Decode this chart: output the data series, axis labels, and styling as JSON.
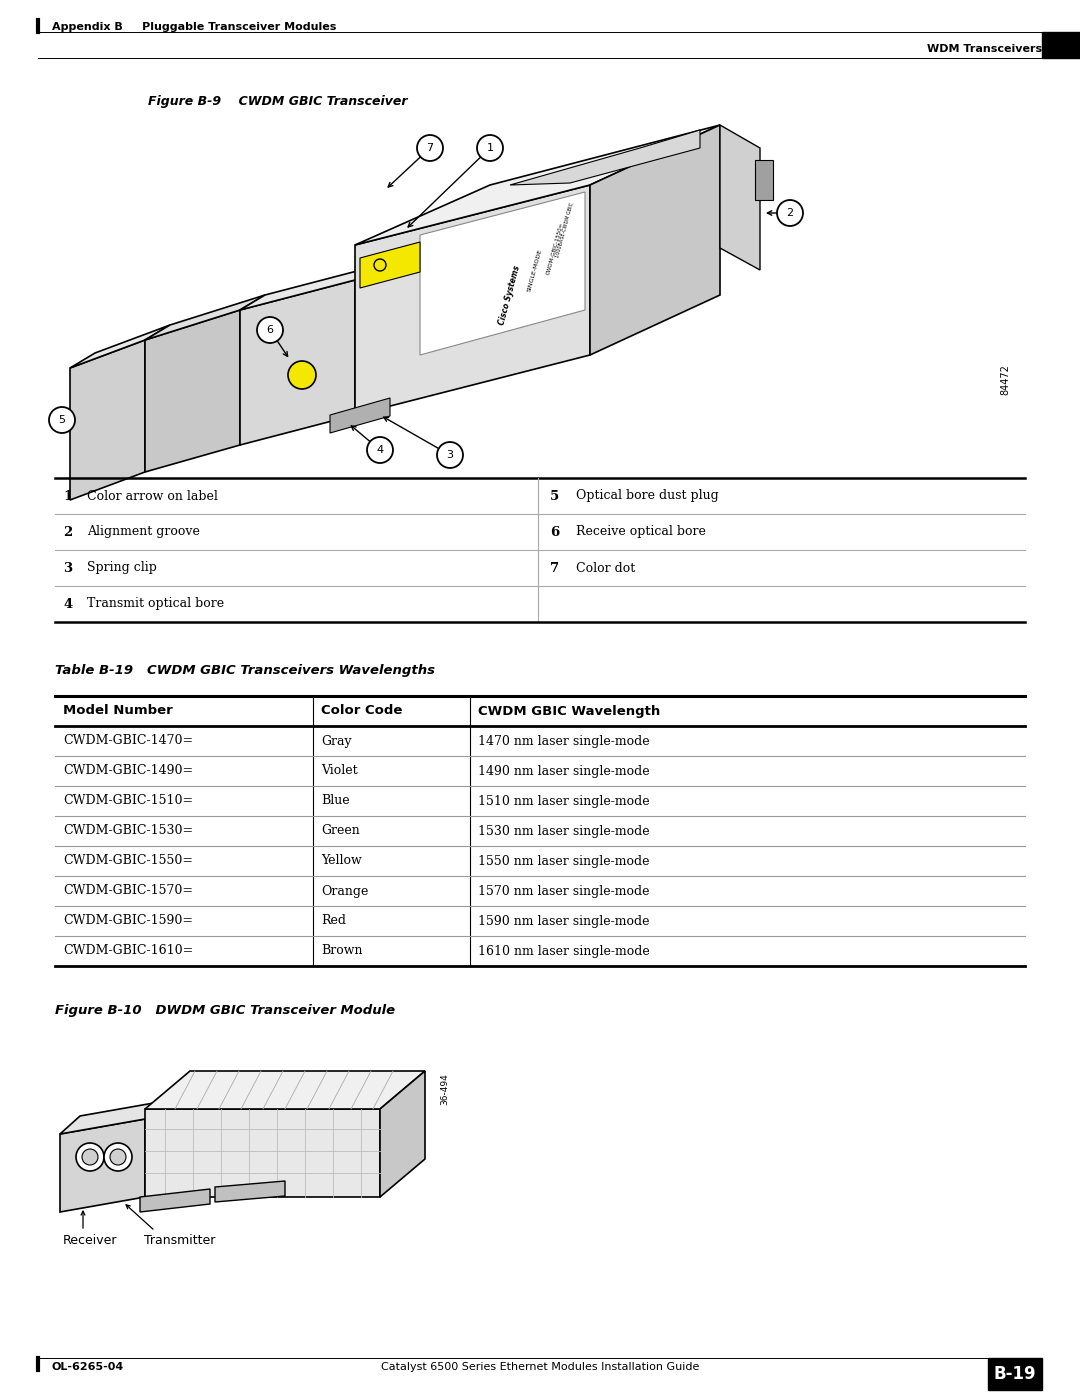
{
  "page_width": 10.8,
  "page_height": 13.97,
  "bg_color": "#ffffff",
  "header_text_left": "Appendix B     Pluggable Transceiver Modules",
  "header_text_right": "WDM Transceivers",
  "footer_text_left": "OL-6265-04",
  "footer_text_right": "B-19",
  "footer_center": "Catalyst 6500 Series Ethernet Modules Installation Guide",
  "figure_b9_title": "Figure B-9    CWDM GBIC Transceiver",
  "callout_table": {
    "rows": [
      [
        "1",
        "Color arrow on label",
        "5",
        "Optical bore dust plug"
      ],
      [
        "2",
        "Alignment groove",
        "6",
        "Receive optical bore"
      ],
      [
        "3",
        "Spring clip",
        "7",
        "Color dot"
      ],
      [
        "4",
        "Transmit optical bore",
        "",
        ""
      ]
    ]
  },
  "table_b19_title": "Table B-19   CWDM GBIC Transceivers Wavelengths",
  "table_b19_headers": [
    "Model Number",
    "Color Code",
    "CWDM GBIC Wavelength"
  ],
  "table_b19_rows": [
    [
      "CWDM-GBIC-1470=",
      "Gray",
      "1470 nm laser single-mode"
    ],
    [
      "CWDM-GBIC-1490=",
      "Violet",
      "1490 nm laser single-mode"
    ],
    [
      "CWDM-GBIC-1510=",
      "Blue",
      "1510 nm laser single-mode"
    ],
    [
      "CWDM-GBIC-1530=",
      "Green",
      "1530 nm laser single-mode"
    ],
    [
      "CWDM-GBIC-1550=",
      "Yellow",
      "1550 nm laser single-mode"
    ],
    [
      "CWDM-GBIC-1570=",
      "Orange",
      "1570 nm laser single-mode"
    ],
    [
      "CWDM-GBIC-1590=",
      "Red",
      "1590 nm laser single-mode"
    ],
    [
      "CWDM-GBIC-1610=",
      "Brown",
      "1610 nm laser single-mode"
    ]
  ],
  "figure_b10_title": "Figure B-10   DWDM GBIC Transceiver Module",
  "figure_b10_labels": [
    "Receiver",
    "Transmitter"
  ],
  "image_number_b9": "84472",
  "image_number_b10": "36-494"
}
